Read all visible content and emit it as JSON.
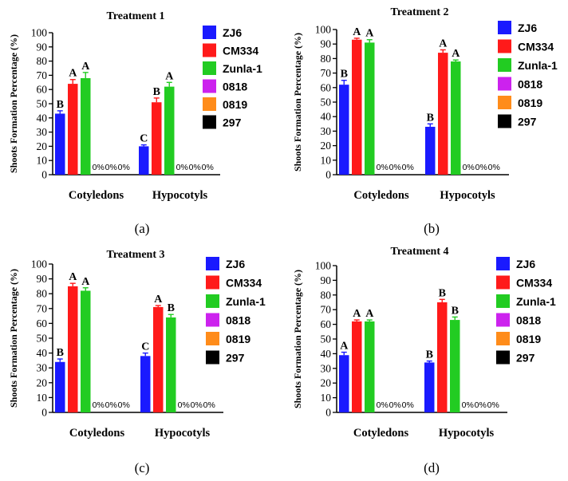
{
  "figure": {
    "ylabel": "Shoots Formation Percentage (%)",
    "legend": [
      {
        "label": "ZJ6",
        "color": "#1a1aff"
      },
      {
        "label": "CM334",
        "color": "#ff1a1a"
      },
      {
        "label": "Zunla-1",
        "color": "#22cc22"
      },
      {
        "label": "0818",
        "color": "#cc22ee"
      },
      {
        "label": "0819",
        "color": "#ff8c1a"
      },
      {
        "label": "297",
        "color": "#000000"
      }
    ]
  },
  "chart_data": [
    {
      "type": "bar",
      "panel": "(a)",
      "title": "Treatment 1",
      "ylabel": "Shoots Formation Percentage (%)",
      "ylim": [
        0,
        100
      ],
      "yticks": [
        "0",
        "10",
        "20",
        "30",
        "40",
        "50",
        "60",
        "70",
        "80",
        "90",
        "100"
      ],
      "categories": [
        "Cotyledons",
        "Hypocotyls"
      ],
      "series": [
        {
          "name": "ZJ6",
          "values": [
            43,
            20
          ],
          "errors": [
            2,
            1
          ],
          "letters": [
            "B",
            "C"
          ]
        },
        {
          "name": "CM334",
          "values": [
            64,
            51
          ],
          "errors": [
            3,
            3
          ],
          "letters": [
            "A",
            "B"
          ]
        },
        {
          "name": "Zunla-1",
          "values": [
            68,
            62
          ],
          "errors": [
            4,
            3
          ],
          "letters": [
            "A",
            "A"
          ]
        },
        {
          "name": "0818",
          "values": [
            0,
            0
          ],
          "labels": [
            "0%",
            "0%"
          ]
        },
        {
          "name": "0819",
          "values": [
            0,
            0
          ],
          "labels": [
            "0%",
            "0%"
          ]
        },
        {
          "name": "297",
          "values": [
            0,
            0
          ],
          "labels": [
            "0%",
            "0%"
          ]
        }
      ]
    },
    {
      "type": "bar",
      "panel": "(b)",
      "title": "Treatment 2",
      "ylabel": "Shoots Formation Percentage (%)",
      "ylim": [
        0,
        100
      ],
      "yticks": [
        "0",
        "10",
        "20",
        "30",
        "40",
        "50",
        "60",
        "70",
        "80",
        "90",
        "100"
      ],
      "categories": [
        "Cotyledons",
        "Hypocotyls"
      ],
      "series": [
        {
          "name": "ZJ6",
          "values": [
            62,
            33
          ],
          "errors": [
            3,
            2
          ],
          "letters": [
            "B",
            "B"
          ]
        },
        {
          "name": "CM334",
          "values": [
            93,
            84
          ],
          "errors": [
            1,
            2
          ],
          "letters": [
            "A",
            "A"
          ]
        },
        {
          "name": "Zunla-1",
          "values": [
            91,
            78
          ],
          "errors": [
            2,
            1
          ],
          "letters": [
            "A",
            "A"
          ]
        },
        {
          "name": "0818",
          "values": [
            0,
            0
          ],
          "labels": [
            "0%",
            "0%"
          ]
        },
        {
          "name": "0819",
          "values": [
            0,
            0
          ],
          "labels": [
            "0%",
            "0%"
          ]
        },
        {
          "name": "297",
          "values": [
            0,
            0
          ],
          "labels": [
            "0%",
            "0%"
          ]
        }
      ]
    },
    {
      "type": "bar",
      "panel": "(c)",
      "title": "Treatment 3",
      "ylabel": "Shoots Formation Percentage (%)",
      "ylim": [
        0,
        100
      ],
      "yticks": [
        "0",
        "10",
        "20",
        "30",
        "40",
        "50",
        "60",
        "70",
        "80",
        "90",
        "100"
      ],
      "categories": [
        "Cotyledons",
        "Hypocotyls"
      ],
      "series": [
        {
          "name": "ZJ6",
          "values": [
            34,
            38
          ],
          "errors": [
            2,
            2
          ],
          "letters": [
            "B",
            "C"
          ]
        },
        {
          "name": "CM334",
          "values": [
            85,
            71
          ],
          "errors": [
            2,
            1
          ],
          "letters": [
            "A",
            "A"
          ]
        },
        {
          "name": "Zunla-1",
          "values": [
            82,
            64
          ],
          "errors": [
            2,
            2
          ],
          "letters": [
            "A",
            "B"
          ]
        },
        {
          "name": "0818",
          "values": [
            0,
            0
          ],
          "labels": [
            "0%",
            "0%"
          ]
        },
        {
          "name": "0819",
          "values": [
            0,
            0
          ],
          "labels": [
            "0%",
            "0%"
          ]
        },
        {
          "name": "297",
          "values": [
            0,
            0
          ],
          "labels": [
            "0%",
            "0%"
          ]
        }
      ]
    },
    {
      "type": "bar",
      "panel": "(d)",
      "title": "Treatment 4",
      "ylabel": "Shoots Formation Percentage (%)",
      "ylim": [
        0,
        100
      ],
      "yticks": [
        "0",
        "10",
        "20",
        "30",
        "40",
        "50",
        "60",
        "70",
        "80",
        "90",
        "100"
      ],
      "categories": [
        "Cotyledons",
        "Hypocotyls"
      ],
      "series": [
        {
          "name": "ZJ6",
          "values": [
            39,
            34
          ],
          "errors": [
            2,
            1
          ],
          "letters": [
            "A",
            "B"
          ]
        },
        {
          "name": "CM334",
          "values": [
            62,
            75
          ],
          "errors": [
            1,
            2
          ],
          "letters": [
            "A",
            "B"
          ]
        },
        {
          "name": "Zunla-1",
          "values": [
            62,
            63
          ],
          "errors": [
            1,
            2
          ],
          "letters": [
            "A",
            "B"
          ]
        },
        {
          "name": "0818",
          "values": [
            0,
            0
          ],
          "labels": [
            "0%",
            "0%"
          ]
        },
        {
          "name": "0819",
          "values": [
            0,
            0
          ],
          "labels": [
            "0%",
            "0%"
          ]
        },
        {
          "name": "297",
          "values": [
            0,
            0
          ],
          "labels": [
            "0%",
            "0%"
          ]
        }
      ]
    }
  ]
}
